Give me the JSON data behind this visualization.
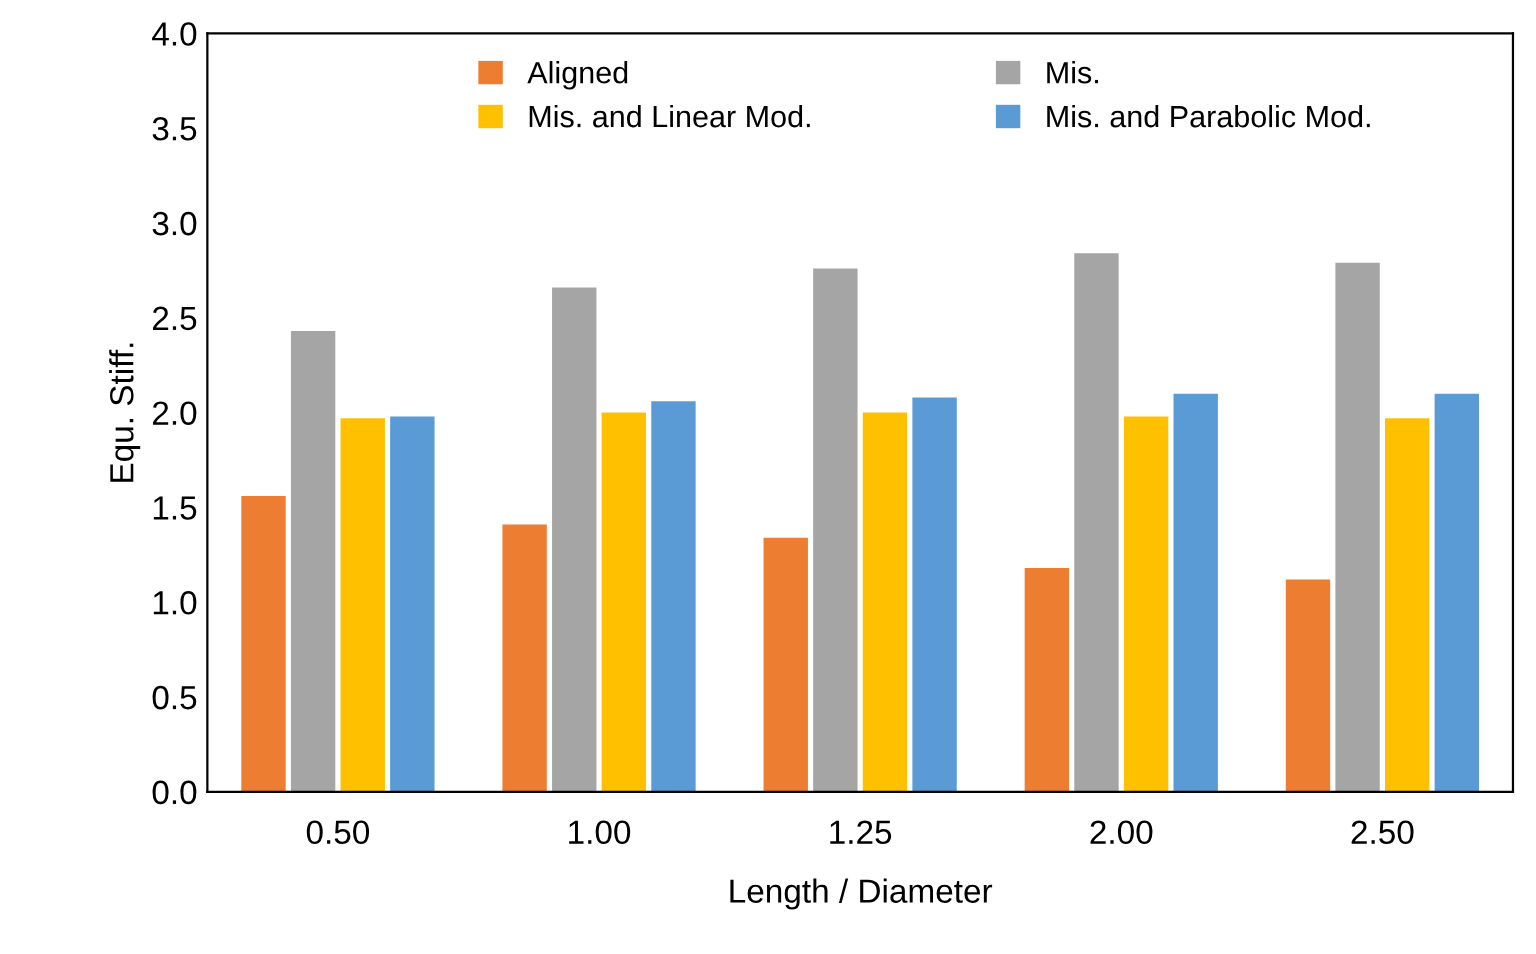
{
  "chart_data": {
    "type": "bar",
    "xlabel": "Length / Diameter",
    "ylabel": "Equ. Stiff.",
    "categories": [
      "0.50",
      "1.00",
      "1.25",
      "2.00",
      "2.50"
    ],
    "series": [
      {
        "name": "Aligned",
        "color": "#ed7d31",
        "values": [
          1.56,
          1.41,
          1.34,
          1.18,
          1.12
        ]
      },
      {
        "name": "Mis.",
        "color": "#a5a5a5",
        "values": [
          2.43,
          2.66,
          2.76,
          2.84,
          2.79
        ]
      },
      {
        "name": "Mis. and Linear Mod.",
        "color": "#ffc000",
        "values": [
          1.97,
          2.0,
          2.0,
          1.98,
          1.97
        ]
      },
      {
        "name": "Mis. and Parabolic Mod.",
        "color": "#5b9bd5",
        "values": [
          1.98,
          2.06,
          2.08,
          2.1,
          2.1
        ]
      }
    ],
    "ylim": [
      0,
      4
    ],
    "yticks": [
      {
        "value": 0,
        "label": "0.0"
      },
      {
        "value": 0.5,
        "label": "0.5"
      },
      {
        "value": 1,
        "label": "1.0"
      },
      {
        "value": 1.5,
        "label": "1.5"
      },
      {
        "value": 2,
        "label": "2.0"
      },
      {
        "value": 2.5,
        "label": "2.5"
      },
      {
        "value": 3,
        "label": "3.0"
      },
      {
        "value": 3.5,
        "label": "3.5"
      },
      {
        "value": 4,
        "label": "4.0"
      }
    ],
    "grid": false,
    "legend": "top"
  }
}
